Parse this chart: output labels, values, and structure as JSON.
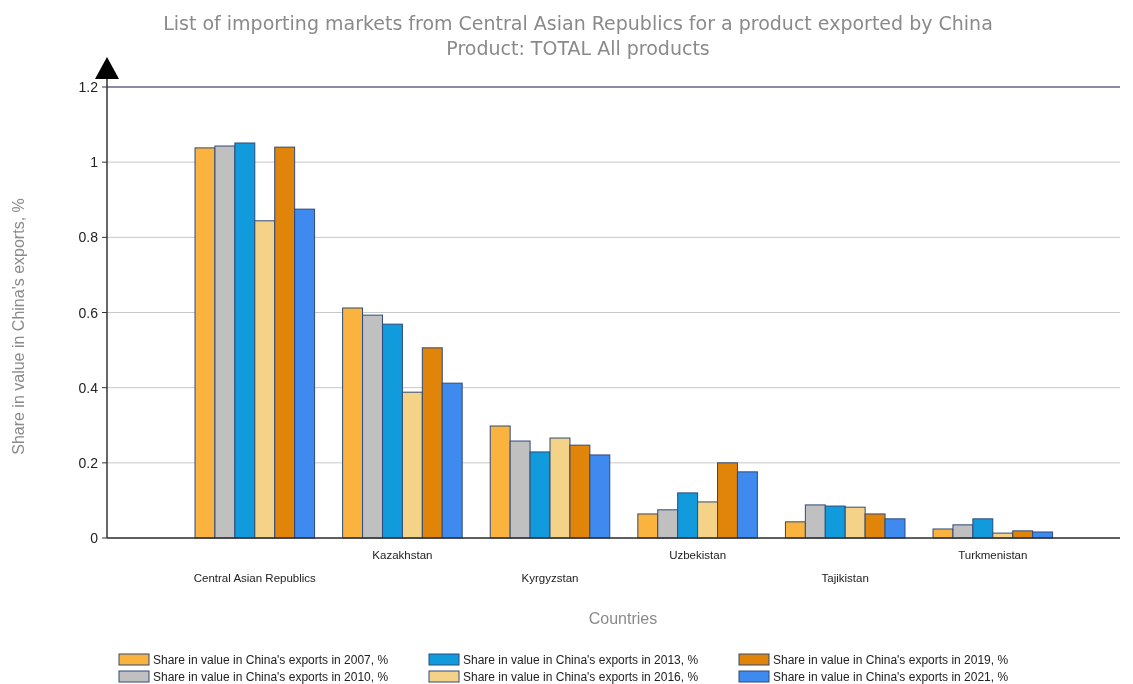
{
  "chart_data": {
    "type": "bar",
    "title": "List of importing markets from Central Asian Republics for a product exported by China",
    "subtitle": "Product: TOTAL All products",
    "xlabel": "Countries",
    "ylabel": "Share in value in China's exports, %",
    "categories": [
      "Central Asian Republics",
      "Kazakhstan",
      "Kyrgyzstan",
      "Uzbekistan",
      "Tajikistan",
      "Turkmenistan"
    ],
    "series": [
      {
        "name": "Share in value in China's exports in 2007, %",
        "color": "#fbb33f",
        "values": [
          1.038,
          0.612,
          0.298,
          0.064,
          0.043,
          0.024
        ]
      },
      {
        "name": "Share in value in China's exports in 2010, %",
        "color": "#c0c0c0",
        "values": [
          1.043,
          0.593,
          0.258,
          0.075,
          0.088,
          0.035
        ]
      },
      {
        "name": "Share in value in China's exports in 2013, %",
        "color": "#119bdc",
        "values": [
          1.051,
          0.569,
          0.229,
          0.12,
          0.085,
          0.051
        ]
      },
      {
        "name": "Share in value in China's exports in 2016, %",
        "color": "#f4d388",
        "values": [
          0.844,
          0.388,
          0.266,
          0.096,
          0.082,
          0.013
        ]
      },
      {
        "name": "Share in value in China's exports in 2019, %",
        "color": "#e0840a",
        "values": [
          1.04,
          0.506,
          0.247,
          0.2,
          0.064,
          0.019
        ]
      },
      {
        "name": "Share in value in China's exports in 2021, %",
        "color": "#3f8aef",
        "values": [
          0.875,
          0.412,
          0.221,
          0.176,
          0.051,
          0.016
        ]
      }
    ],
    "ylim": [
      0,
      1.2
    ],
    "yticks": [
      0,
      0.2,
      0.4,
      0.6,
      0.8,
      1,
      1.2
    ],
    "grid": "y",
    "legend": "bottom"
  }
}
